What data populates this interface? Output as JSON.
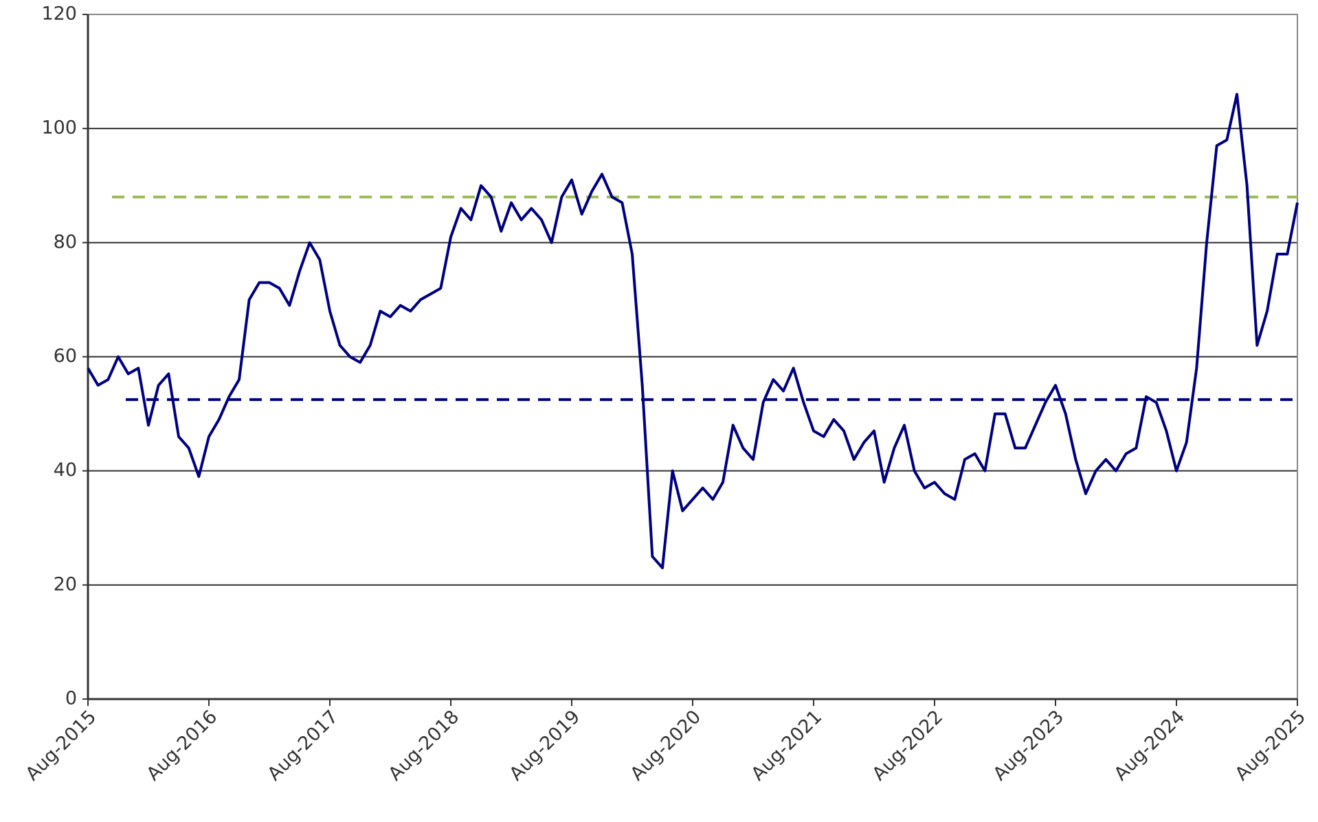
{
  "chart_data": {
    "type": "line",
    "x": [
      "Aug-2015",
      "Sep-2015",
      "Oct-2015",
      "Nov-2015",
      "Dec-2015",
      "Jan-2016",
      "Feb-2016",
      "Mar-2016",
      "Apr-2016",
      "May-2016",
      "Jun-2016",
      "Jul-2016",
      "Aug-2016",
      "Sep-2016",
      "Oct-2016",
      "Nov-2016",
      "Dec-2016",
      "Jan-2017",
      "Feb-2017",
      "Mar-2017",
      "Apr-2017",
      "May-2017",
      "Jun-2017",
      "Jul-2017",
      "Aug-2017",
      "Sep-2017",
      "Oct-2017",
      "Nov-2017",
      "Dec-2017",
      "Jan-2018",
      "Feb-2018",
      "Mar-2018",
      "Apr-2018",
      "May-2018",
      "Jun-2018",
      "Jul-2018",
      "Aug-2018",
      "Sep-2018",
      "Oct-2018",
      "Nov-2018",
      "Dec-2018",
      "Jan-2019",
      "Feb-2019",
      "Mar-2019",
      "Apr-2019",
      "May-2019",
      "Jun-2019",
      "Jul-2019",
      "Aug-2019",
      "Sep-2019",
      "Oct-2019",
      "Nov-2019",
      "Dec-2019",
      "Jan-2020",
      "Feb-2020",
      "Mar-2020",
      "Apr-2020",
      "May-2020",
      "Jun-2020",
      "Jul-2020",
      "Aug-2020",
      "Sep-2020",
      "Oct-2020",
      "Nov-2020",
      "Dec-2020",
      "Jan-2021",
      "Feb-2021",
      "Mar-2021",
      "Apr-2021",
      "May-2021",
      "Jun-2021",
      "Jul-2021",
      "Aug-2021",
      "Sep-2021",
      "Oct-2021",
      "Nov-2021",
      "Dec-2021",
      "Jan-2022",
      "Feb-2022",
      "Mar-2022",
      "Apr-2022",
      "May-2022",
      "Jun-2022",
      "Jul-2022",
      "Aug-2022",
      "Sep-2022",
      "Oct-2022",
      "Nov-2022",
      "Dec-2022",
      "Jan-2023",
      "Feb-2023",
      "Mar-2023",
      "Apr-2023",
      "May-2023",
      "Jun-2023",
      "Jul-2023",
      "Aug-2023",
      "Sep-2023",
      "Oct-2023",
      "Nov-2023",
      "Dec-2023",
      "Jan-2024",
      "Feb-2024",
      "Mar-2024",
      "Apr-2024",
      "May-2024",
      "Jun-2024",
      "Jul-2024",
      "Aug-2024",
      "Sep-2024",
      "Oct-2024",
      "Nov-2024",
      "Dec-2024",
      "Jan-2025",
      "Feb-2025",
      "Mar-2025",
      "Apr-2025",
      "May-2025",
      "Jun-2025",
      "Jul-2025",
      "Aug-2025"
    ],
    "series": [
      {
        "color": "#000080",
        "values": [
          58,
          55,
          56,
          60,
          57,
          58,
          48,
          55,
          57,
          46,
          44,
          39,
          46,
          49,
          53,
          56,
          70,
          73,
          73,
          72,
          69,
          75,
          80,
          77,
          68,
          62,
          60,
          59,
          62,
          68,
          67,
          69,
          68,
          70,
          71,
          72,
          81,
          86,
          84,
          90,
          88,
          82,
          87,
          84,
          86,
          84,
          80,
          88,
          91,
          85,
          89,
          92,
          88,
          87,
          78,
          55,
          25,
          23,
          40,
          33,
          35,
          37,
          35,
          38,
          48,
          44,
          42,
          52,
          56,
          54,
          58,
          52,
          47,
          46,
          49,
          47,
          42,
          45,
          47,
          38,
          44,
          48,
          40,
          37,
          38,
          36,
          35,
          42,
          43,
          40,
          50,
          50,
          44,
          44,
          48,
          52,
          55,
          50,
          42,
          36,
          40,
          42,
          40,
          43,
          44,
          53,
          52,
          47,
          40,
          45,
          58,
          80,
          97,
          98,
          106,
          90,
          62,
          68,
          78,
          78,
          87
        ]
      }
    ],
    "reference_lines": [
      {
        "value": 88,
        "color": "#9bbb59"
      },
      {
        "value": 52.5,
        "color": "#000080"
      }
    ],
    "xtick_every": 12,
    "ylim": [
      0,
      120
    ],
    "yticks": [
      0,
      20,
      40,
      60,
      80,
      100,
      120
    ],
    "grid": true
  }
}
